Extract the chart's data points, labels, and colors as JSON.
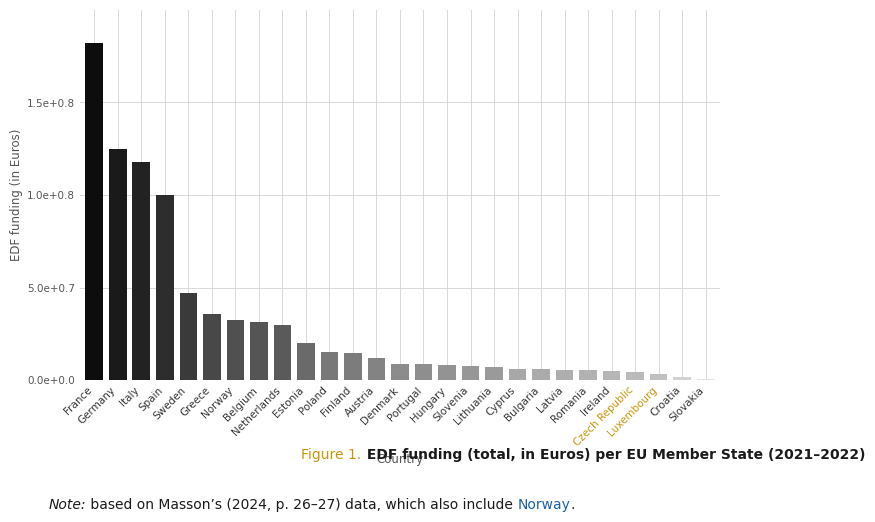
{
  "countries": [
    "France",
    "Germany",
    "Italy",
    "Spain",
    "Sweden",
    "Greece",
    "Norway",
    "Belgium",
    "Netherlands",
    "Estonia",
    "Poland",
    "Finland",
    "Austria",
    "Denmark",
    "Portugal",
    "Hungary",
    "Slovenia",
    "Lithuania",
    "Cyprus",
    "Bulgaria",
    "Latvia",
    "Romania",
    "Ireland",
    "Czech Republic",
    "Luxembourg",
    "Croatia",
    "Slovakia"
  ],
  "values": [
    182000000.0,
    125000000.0,
    118000000.0,
    100000000.0,
    47000000.0,
    35500000.0,
    32500000.0,
    31500000.0,
    30000000.0,
    20000000.0,
    15200000.0,
    14500000.0,
    12000000.0,
    9000000.0,
    8500000.0,
    8000000.0,
    7500000.0,
    7000000.0,
    6000000.0,
    5800000.0,
    5500000.0,
    5300000.0,
    5000000.0,
    4500000.0,
    3400000.0,
    1900000.0,
    750000.0
  ],
  "bar_colors": [
    "#0d0d0d",
    "#1a1a1a",
    "#222222",
    "#2d2d2d",
    "#3a3a3a",
    "#484848",
    "#505050",
    "#555555",
    "#5a5a5a",
    "#6a6a6a",
    "#787878",
    "#7c7c7c",
    "#838383",
    "#8c8c8c",
    "#8e8e8e",
    "#939393",
    "#979797",
    "#9a9a9a",
    "#a8a8a8",
    "#ababab",
    "#aeaeae",
    "#b2b2b2",
    "#b6b6b6",
    "#bababa",
    "#c0c0c0",
    "#d2d2d2",
    "#e2e2e2"
  ],
  "highlight_countries": [
    "Czech Republic",
    "Luxembourg"
  ],
  "highlight_color": "#c8950a",
  "ylabel": "EDF funding (in Euros)",
  "xlabel": "Country",
  "background_color": "#ffffff",
  "grid_color": "#d8d8d8",
  "caption_prefix": "Figure 1.",
  "caption_prefix_color": "#c8950a",
  "caption_bold": " EDF funding (total, in Euros) per EU Member State (2021–2022)",
  "caption_bold_color": "#1a1a1a",
  "note_italic": "Note:",
  "note_italic_color": "#1a1a1a",
  "note_normal": " based on Masson’s (2024, p. 26–27) data, which also include ",
  "note_normal_color": "#1a1a1a",
  "note_highlight": "Norway",
  "note_highlight_color": "#1a5fa8",
  "note_end": ".",
  "ylim": [
    0,
    200000000.0
  ],
  "yticks": [
    0,
    50000000,
    100000000,
    150000000
  ],
  "ytick_labels": [
    "0.0e+0.0",
    "5.0e+0.7",
    "1.0e+0.8",
    "1.5e+0.8"
  ]
}
